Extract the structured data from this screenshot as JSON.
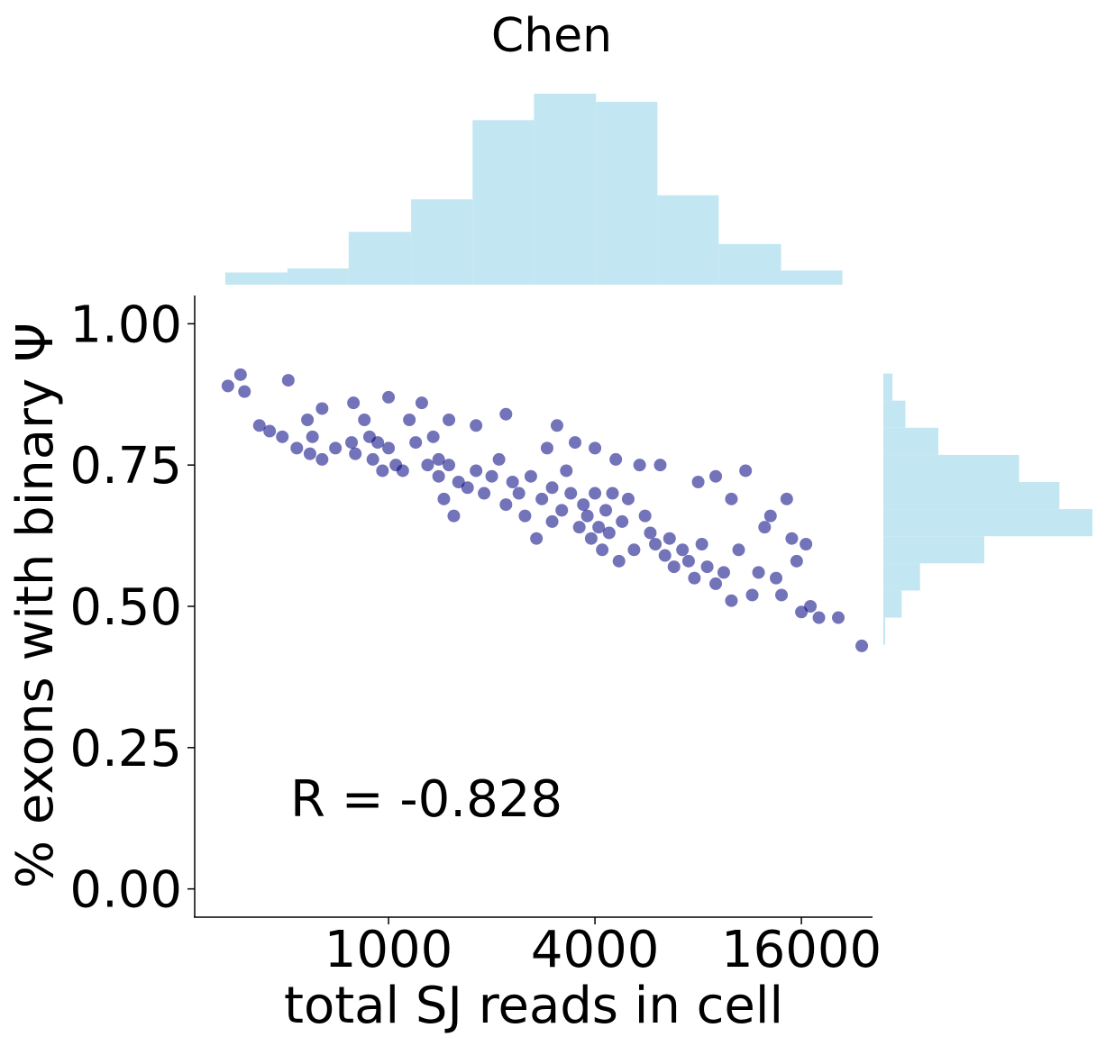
{
  "chart_data": {
    "type": "scatter",
    "title": "Chen",
    "x_label": "total SJ reads in cell",
    "y_label": "% exons with binary Ψ",
    "annotation": "R = -0.828",
    "xscale": "log",
    "xlim": [
      272,
      25800
    ],
    "ylim": [
      -0.05,
      1.05
    ],
    "xticks": [
      1000,
      4000,
      16000
    ],
    "yticks": [
      {
        "value": 0,
        "label": "0.00"
      },
      {
        "value": 0.25,
        "label": "0.25"
      },
      {
        "value": 0.5,
        "label": "0.50"
      },
      {
        "value": 0.75,
        "label": "0.75"
      },
      {
        "value": 1,
        "label": "1.00"
      }
    ],
    "color": "#000080",
    "x": [
      340,
      370,
      380,
      420,
      450,
      510,
      490,
      540,
      580,
      590,
      600,
      640,
      640,
      700,
      780,
      790,
      800,
      850,
      880,
      900,
      930,
      960,
      1000,
      1000,
      1050,
      1100,
      1150,
      1200,
      1250,
      1300,
      1350,
      1400,
      1400,
      1450,
      1500,
      1500,
      1550,
      1600,
      1700,
      1800,
      1800,
      1900,
      2000,
      2100,
      2200,
      2200,
      2300,
      2400,
      2500,
      2600,
      2700,
      2800,
      2900,
      3000,
      3000,
      3100,
      3200,
      3300,
      3400,
      3500,
      3600,
      3700,
      3800,
      3900,
      4000,
      4000,
      4100,
      4200,
      4300,
      4400,
      4500,
      4600,
      4700,
      4800,
      5000,
      5200,
      5400,
      5600,
      5800,
      6000,
      6200,
      6400,
      6600,
      6800,
      7200,
      7500,
      7800,
      8000,
      8200,
      8500,
      9000,
      9000,
      9500,
      10000,
      10000,
      10500,
      11000,
      11500,
      12000,
      12500,
      13000,
      13500,
      14000,
      14500,
      15000,
      15500,
      16000,
      16500,
      17000,
      18000,
      20500,
      24000
    ],
    "y": [
      0.89,
      0.91,
      0.88,
      0.82,
      0.81,
      0.9,
      0.8,
      0.78,
      0.83,
      0.77,
      0.8,
      0.85,
      0.76,
      0.78,
      0.79,
      0.86,
      0.77,
      0.83,
      0.8,
      0.76,
      0.79,
      0.74,
      0.87,
      0.78,
      0.75,
      0.74,
      0.83,
      0.79,
      0.86,
      0.75,
      0.8,
      0.76,
      0.73,
      0.69,
      0.83,
      0.75,
      0.66,
      0.72,
      0.71,
      0.82,
      0.74,
      0.7,
      0.73,
      0.76,
      0.84,
      0.68,
      0.72,
      0.7,
      0.66,
      0.73,
      0.62,
      0.69,
      0.78,
      0.71,
      0.65,
      0.82,
      0.67,
      0.74,
      0.7,
      0.79,
      0.64,
      0.68,
      0.66,
      0.62,
      0.78,
      0.7,
      0.64,
      0.6,
      0.67,
      0.63,
      0.7,
      0.76,
      0.58,
      0.65,
      0.69,
      0.6,
      0.75,
      0.66,
      0.63,
      0.61,
      0.75,
      0.59,
      0.62,
      0.57,
      0.6,
      0.58,
      0.55,
      0.72,
      0.61,
      0.57,
      0.73,
      0.54,
      0.56,
      0.69,
      0.51,
      0.6,
      0.74,
      0.52,
      0.56,
      0.64,
      0.66,
      0.55,
      0.52,
      0.69,
      0.62,
      0.58,
      0.49,
      0.61,
      0.5,
      0.48,
      0.48,
      0.43
    ],
    "x_histogram": {
      "type": "histogram",
      "color": "#c3e6f3",
      "bins": [
        334,
        507,
        765,
        1164,
        1758,
        2655,
        4029,
        6085,
        9183,
        13960,
        21080
      ],
      "values": [
        6,
        8,
        26,
        42,
        81,
        94,
        90,
        44,
        20,
        7
      ]
    },
    "y_histogram": {
      "type": "histogram",
      "color": "#c3e6f3",
      "bins": [
        0.432,
        0.48,
        0.528,
        0.576,
        0.624,
        0.672,
        0.72,
        0.768,
        0.816,
        0.864,
        0.912
      ],
      "values": [
        1,
        10,
        20,
        55,
        114,
        96,
        74,
        30,
        12,
        5
      ]
    }
  }
}
